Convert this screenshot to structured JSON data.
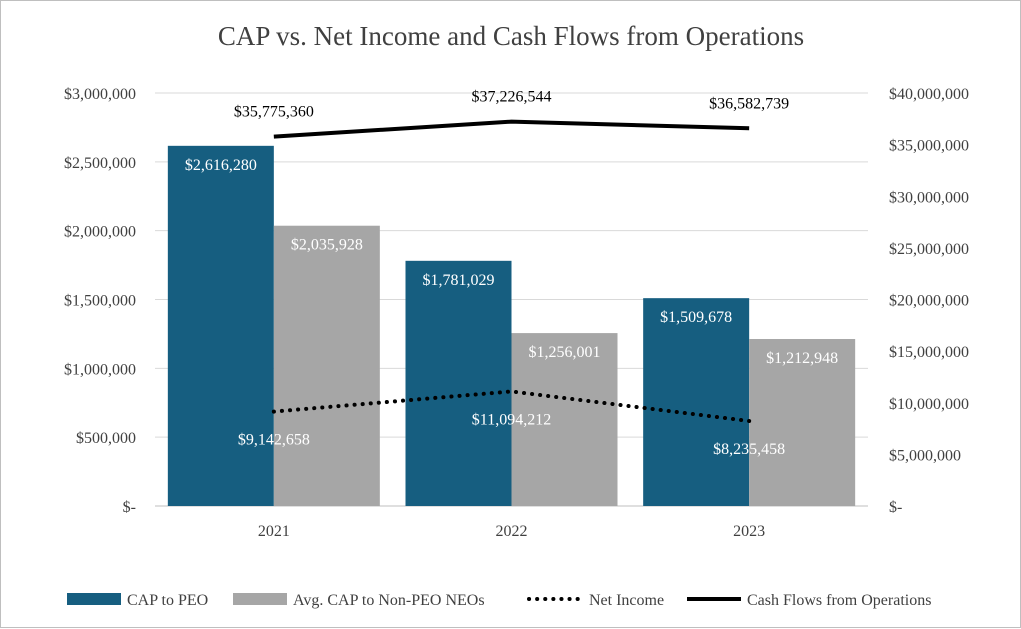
{
  "chart_data": {
    "type": "bar",
    "title": "CAP vs. Net Income and Cash Flows from Operations",
    "categories": [
      "2021",
      "2022",
      "2023"
    ],
    "series": [
      {
        "name": "CAP to PEO",
        "type": "bar",
        "axis": "left",
        "color": "#165e80",
        "values": [
          2616280,
          1781029,
          1509678
        ],
        "labels": [
          "$2,616,280",
          "$1,781,029",
          "$1,509,678"
        ]
      },
      {
        "name": "Avg. CAP to Non-PEO NEOs",
        "type": "bar",
        "axis": "left",
        "color": "#a6a6a6",
        "values": [
          2035928,
          1256001,
          1212948
        ],
        "labels": [
          "$2,035,928",
          "$1,256,001",
          "$1,212,948"
        ]
      },
      {
        "name": "Net Income",
        "type": "line",
        "style": "dotted",
        "axis": "right",
        "color": "#000000",
        "values": [
          9142658,
          11094212,
          8235458
        ],
        "labels": [
          "$9,142,658",
          "$11,094,212",
          "$8,235,458"
        ]
      },
      {
        "name": "Cash Flows from Operations",
        "type": "line",
        "style": "solid",
        "axis": "right",
        "color": "#000000",
        "values": [
          35775360,
          37226544,
          36582739
        ],
        "labels": [
          "$35,775,360",
          "$37,226,544",
          "$36,582,739"
        ]
      }
    ],
    "ylim_left": [
      0,
      3000000
    ],
    "yticks_left": [
      "$-",
      "$500,000",
      "$1,000,000",
      "$1,500,000",
      "$2,000,000",
      "$2,500,000",
      "$3,000,000"
    ],
    "ylim_right": [
      0,
      40000000
    ],
    "yticks_right": [
      "$-",
      "$5,000,000",
      "$10,000,000",
      "$15,000,000",
      "$20,000,000",
      "$25,000,000",
      "$30,000,000",
      "$35,000,000",
      "$40,000,000"
    ],
    "legend": "bottom",
    "grid": true
  }
}
